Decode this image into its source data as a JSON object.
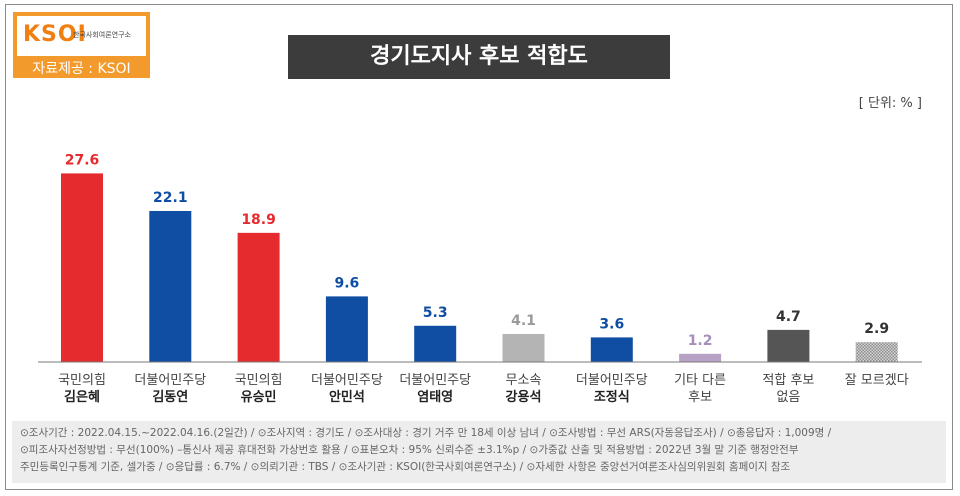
{
  "header": {
    "brand": "KSOI",
    "org": "한국사회여론연구소",
    "source": "자료제공 : KSOI",
    "title": "경기도지사 후보 적합도",
    "unit": "[ 단위: % ]"
  },
  "colors": {
    "red": "#e62b2f",
    "blue": "#0f4ea3",
    "gray": "#b4b4b4",
    "purple": "#b7a2c6",
    "darkgray": "#555555",
    "orange": "#f39a2c"
  },
  "chart_data": {
    "type": "bar",
    "title": "경기도지사 후보 적합도",
    "xlabel": "",
    "ylabel": "",
    "ylim": [
      0,
      30
    ],
    "grid": false,
    "bars": [
      {
        "party": "국민의힘",
        "name": "김은혜",
        "value": 27.6,
        "value_label": "27.6",
        "color": "#e62b2f",
        "label_color": "#e62b2f",
        "pattern": false
      },
      {
        "party": "더불어민주당",
        "name": "김동연",
        "value": 22.1,
        "value_label": "22.1",
        "color": "#0f4ea3",
        "label_color": "#0f4ea3",
        "pattern": false
      },
      {
        "party": "국민의힘",
        "name": "유승민",
        "value": 18.9,
        "value_label": "18.9",
        "color": "#e62b2f",
        "label_color": "#e62b2f",
        "pattern": false
      },
      {
        "party": "더불어민주당",
        "name": "안민석",
        "value": 9.6,
        "value_label": "9.6",
        "color": "#0f4ea3",
        "label_color": "#0f4ea3",
        "pattern": false
      },
      {
        "party": "더불어민주당",
        "name": "염태영",
        "value": 5.3,
        "value_label": "5.3",
        "color": "#0f4ea3",
        "label_color": "#0f4ea3",
        "pattern": false
      },
      {
        "party": "무소속",
        "name": "강용석",
        "value": 4.1,
        "value_label": "4.1",
        "color": "#b4b4b4",
        "label_color": "#9a9a9a",
        "pattern": false
      },
      {
        "party": "더불어민주당",
        "name": "조정식",
        "value": 3.6,
        "value_label": "3.6",
        "color": "#0f4ea3",
        "label_color": "#0f4ea3",
        "pattern": false
      },
      {
        "party": "기타 다른",
        "name": "후보",
        "value": 1.2,
        "value_label": "1.2",
        "color": "#b7a2c6",
        "label_color": "#a58fba",
        "pattern": false,
        "plain_name": true
      },
      {
        "party": "적합 후보",
        "name": "없음",
        "value": 4.7,
        "value_label": "4.7",
        "color": "#555555",
        "label_color": "#333333",
        "pattern": false,
        "plain_name": true
      },
      {
        "party": "잘 모르겠다",
        "name": "",
        "value": 2.9,
        "value_label": "2.9",
        "color": "#c9c9c9",
        "label_color": "#333333",
        "pattern": true,
        "plain_name": true
      }
    ]
  },
  "footer": {
    "lines": [
      "⊙조사기간 : 2022.04.15.~2022.04.16.(2일간)  / ⊙조사지역 : 경기도 / ⊙조사대상 : 경기 거주 만 18세 이상 남녀 / ⊙조사방법 : 무선 ARS(자동응답조사) / ⊙총응답자 : 1,009명 /",
      "⊙피조사자선정방법 : 무선(100%) –통신사 제공 휴대전화 가상번호 활용 / ⊙표본오차 : 95% 신뢰수준 ±3.1%p / ⊙가중값 산출 및 적용방법 : 2022년 3월 말 기준 행정안전부",
      "주민등록인구통계 기준, 셀가중 / ⊙응답률 : 6.7% / ⊙의뢰기관 : TBS / ⊙조사기관 : KSOI(한국사회여론연구소) / ⊙자세한 사항은 중앙선거여론조사심의위원회 홈페이지 참조"
    ]
  }
}
